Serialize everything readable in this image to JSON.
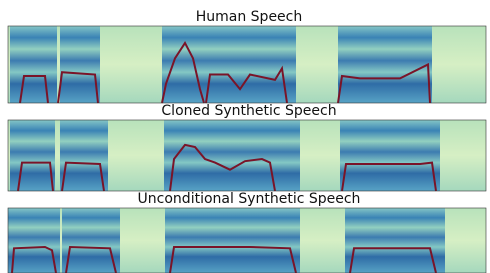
{
  "panels": [
    {
      "title": "Human Speech"
    },
    {
      "title": "Cloned Synthetic Speech"
    },
    {
      "title": "Unconditional Synthetic Speech"
    }
  ]
}
